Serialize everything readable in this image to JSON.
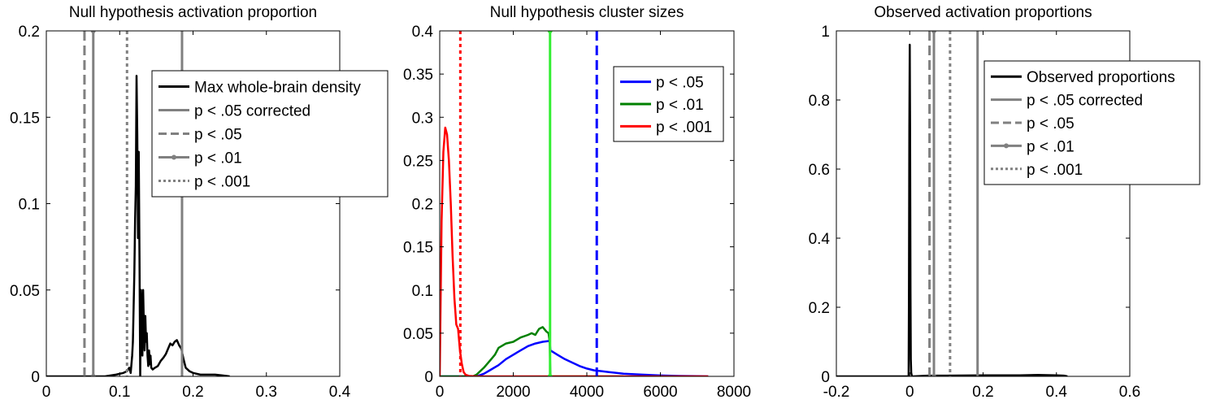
{
  "chart_data": [
    {
      "type": "line",
      "title": "Null hypothesis activation proportion",
      "xlim": [
        0,
        0.4
      ],
      "ylim": [
        0,
        0.2
      ],
      "xticks": [
        "0",
        "0.1",
        "0.2",
        "0.3",
        "0.4"
      ],
      "xtick_values": [
        0,
        0.1,
        0.2,
        0.3,
        0.4
      ],
      "yticks": [
        "0",
        "0.05",
        "0.1",
        "0.15",
        "0.2"
      ],
      "ytick_values": [
        0,
        0.05,
        0.1,
        0.15,
        0.2
      ],
      "grid": false,
      "legend_position": "top-right",
      "series": [
        {
          "name": "Max whole-brain density",
          "color": "#000000",
          "style": "solid",
          "x": [
            0.0,
            0.08,
            0.095,
            0.105,
            0.11,
            0.113,
            0.115,
            0.117,
            0.118,
            0.119,
            0.12,
            0.121,
            0.122,
            0.123,
            0.124,
            0.125,
            0.126,
            0.127,
            0.128,
            0.129,
            0.13,
            0.131,
            0.132,
            0.133,
            0.134,
            0.135,
            0.136,
            0.137,
            0.138,
            0.139,
            0.14,
            0.141,
            0.142,
            0.143,
            0.145,
            0.148,
            0.152,
            0.156,
            0.16,
            0.163,
            0.166,
            0.169,
            0.172,
            0.175,
            0.178,
            0.181,
            0.184,
            0.187,
            0.19,
            0.195,
            0.2,
            0.21,
            0.22,
            0.23,
            0.24,
            0.25
          ],
          "y": [
            0.0,
            0.0,
            0.001,
            0.002,
            0.003,
            0.005,
            0.002,
            0.012,
            0.02,
            0.04,
            0.06,
            0.09,
            0.11,
            0.174,
            0.14,
            0.08,
            0.13,
            0.07,
            0.0,
            0.05,
            0.035,
            0.012,
            0.05,
            0.03,
            0.015,
            0.035,
            0.02,
            0.025,
            0.012,
            0.006,
            0.015,
            0.007,
            0.012,
            0.005,
            0.004,
            0.005,
            0.006,
            0.009,
            0.011,
            0.013,
            0.016,
            0.019,
            0.018,
            0.02,
            0.021,
            0.018,
            0.016,
            0.01,
            0.005,
            0.003,
            0.002,
            0.001,
            0.001,
            0.001,
            0.0005,
            0.0
          ]
        },
        {
          "name": "p < .05 corrected",
          "color": "#808080",
          "style": "solid",
          "vline": 0.185
        },
        {
          "name": "p < .05",
          "color": "#808080",
          "style": "dashed",
          "vline": 0.052
        },
        {
          "name": "p < .01",
          "color": "#808080",
          "style": "solid-dot",
          "vline": 0.064
        },
        {
          "name": "p < .001",
          "color": "#808080",
          "style": "dotted",
          "vline": 0.11
        }
      ]
    },
    {
      "type": "line",
      "title": "Null hypothesis cluster sizes",
      "xlim": [
        0,
        8000
      ],
      "ylim": [
        0,
        0.4
      ],
      "xticks": [
        "0",
        "2000",
        "4000",
        "6000",
        "8000"
      ],
      "xtick_values": [
        0,
        2000,
        4000,
        6000,
        8000
      ],
      "yticks": [
        "0",
        "0.05",
        "0.1",
        "0.15",
        "0.2",
        "0.25",
        "0.3",
        "0.35",
        "0.4"
      ],
      "ytick_values": [
        0,
        0.05,
        0.1,
        0.15,
        0.2,
        0.25,
        0.3,
        0.35,
        0.4
      ],
      "grid": false,
      "legend_position": "top-right",
      "series": [
        {
          "name": "p < .05",
          "color": "#0000ff",
          "style": "solid",
          "x": [
            0,
            1000,
            1200,
            1400,
            1600,
            1800,
            2000,
            2200,
            2400,
            2600,
            2800,
            2990,
            3010,
            3200,
            3400,
            3600,
            3800,
            4000,
            4200,
            4400,
            4600,
            5000,
            5500,
            6000,
            6500,
            7000,
            7300
          ],
          "y": [
            0,
            0,
            0.003,
            0.008,
            0.013,
            0.02,
            0.025,
            0.03,
            0.035,
            0.038,
            0.04,
            0.041,
            0.03,
            0.025,
            0.02,
            0.016,
            0.012,
            0.009,
            0.007,
            0.006,
            0.005,
            0.003,
            0.002,
            0.001,
            0.0005,
            0.0002,
            0
          ]
        },
        {
          "name": "p < .01",
          "color": "#008000",
          "style": "solid",
          "x": [
            0,
            900,
            1000,
            1200,
            1400,
            1500,
            1600,
            1800,
            2000,
            2200,
            2400,
            2500,
            2600,
            2700,
            2800,
            2900,
            2960,
            2990,
            3010,
            3200,
            3400,
            3600,
            3800,
            4000,
            4500,
            5000
          ],
          "y": [
            0,
            0,
            0.002,
            0.01,
            0.02,
            0.025,
            0.033,
            0.038,
            0.04,
            0.045,
            0.048,
            0.05,
            0.048,
            0.055,
            0.057,
            0.052,
            0.05,
            0.04,
            0.0,
            0.0,
            0.0,
            0.0,
            0.0,
            0.0,
            0.0,
            0.0
          ]
        },
        {
          "name": "p < .001",
          "color": "#ff0000",
          "style": "solid",
          "x": [
            0,
            50,
            100,
            150,
            200,
            250,
            300,
            350,
            400,
            450,
            500,
            550,
            600,
            650,
            700,
            800,
            1000,
            2000,
            3000,
            4000,
            5000,
            6000,
            7000,
            7300
          ],
          "y": [
            0,
            0.18,
            0.26,
            0.288,
            0.28,
            0.25,
            0.2,
            0.14,
            0.09,
            0.06,
            0.055,
            0.03,
            0.015,
            0.005,
            0.002,
            0.0005,
            0,
            0,
            0,
            0,
            0,
            0,
            0,
            0
          ]
        },
        {
          "name": "",
          "color": "#ff0000",
          "style": "dotted",
          "vline": 560,
          "legend": false
        },
        {
          "name": "",
          "color": "#33ee33",
          "style": "solid-dot",
          "vline": 3000,
          "legend": false
        },
        {
          "name": "",
          "color": "#0000ff",
          "style": "dashed",
          "vline": 4270,
          "legend": false
        }
      ]
    },
    {
      "type": "line",
      "title": "Observed activation proportions",
      "xlim": [
        -0.2,
        0.6
      ],
      "ylim": [
        0,
        1
      ],
      "xticks": [
        "-0.2",
        "0",
        "0.2",
        "0.4",
        "0.6"
      ],
      "xtick_values": [
        -0.2,
        0,
        0.2,
        0.4,
        0.6
      ],
      "yticks": [
        "0",
        "0.2",
        "0.4",
        "0.6",
        "0.8",
        "1"
      ],
      "ytick_values": [
        0,
        0.2,
        0.4,
        0.6,
        0.8,
        1
      ],
      "grid": false,
      "legend_position": "top-right",
      "series": [
        {
          "name": "Observed proportions",
          "color": "#000000",
          "style": "solid",
          "x": [
            -0.2,
            -0.003,
            -0.002,
            -0.001,
            0.0,
            0.001,
            0.002,
            0.003,
            0.004,
            0.006,
            0.01,
            0.05,
            0.1,
            0.2,
            0.3,
            0.35,
            0.4,
            0.42,
            0.43
          ],
          "y": [
            0,
            0,
            0.23,
            0.72,
            0.96,
            0.72,
            0.24,
            0.05,
            0.01,
            0.0,
            0.0,
            0.002,
            0.002,
            0.003,
            0.003,
            0.004,
            0.003,
            0.002,
            0
          ]
        },
        {
          "name": "p < .05 corrected",
          "color": "#808080",
          "style": "solid",
          "vline": 0.185
        },
        {
          "name": "p < .05",
          "color": "#808080",
          "style": "dashed",
          "vline": 0.054
        },
        {
          "name": "p < .01",
          "color": "#808080",
          "style": "solid-dot",
          "vline": 0.066
        },
        {
          "name": "p < .001",
          "color": "#808080",
          "style": "dotted",
          "vline": 0.11
        }
      ]
    }
  ]
}
